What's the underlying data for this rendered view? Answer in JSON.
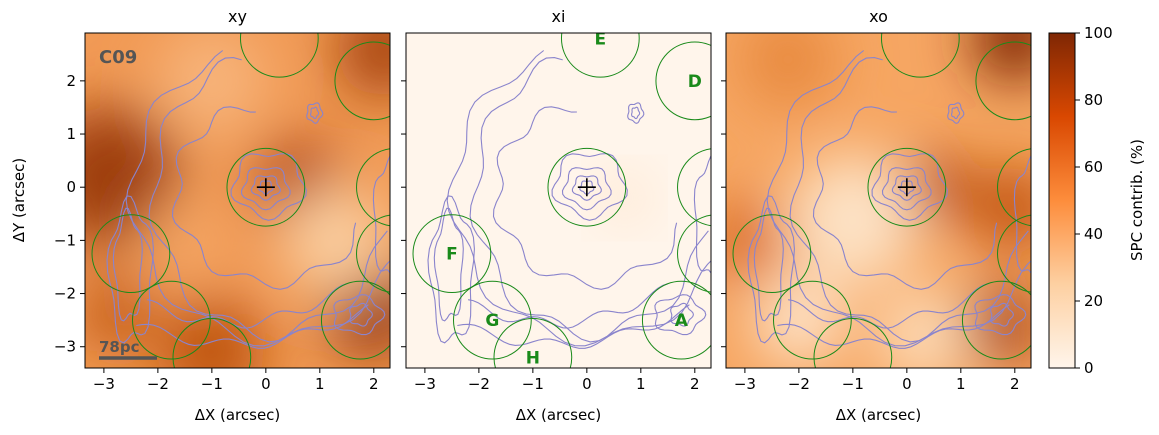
{
  "chart_data": {
    "type": "image-grid",
    "panels": [
      {
        "title": "xy",
        "ylabel": "ΔY (arcsec)",
        "annotations": [
          "C09",
          "78pc"
        ]
      },
      {
        "title": "xi"
      },
      {
        "title": "xo"
      }
    ],
    "xlabel": "ΔX (arcsec)",
    "xlim": [
      -3.35,
      2.3
    ],
    "ylim": [
      -3.4,
      2.9
    ],
    "xticks": [
      {
        "value": -3,
        "label": "−3"
      },
      {
        "value": -2,
        "label": "−2"
      },
      {
        "value": -1,
        "label": "−1"
      },
      0,
      1,
      2
    ],
    "yticks": [
      {
        "value": -3,
        "label": "−3"
      },
      {
        "value": -2,
        "label": "−2"
      },
      {
        "value": -1,
        "label": "−1"
      },
      0,
      1,
      2
    ],
    "apertures": [
      {
        "label": "A",
        "x": 1.75,
        "y": -2.5
      },
      {
        "label": "D",
        "x": 2.0,
        "y": 2.0
      },
      {
        "label": "E",
        "x": 0.25,
        "y": 2.8
      },
      {
        "label": "F",
        "x": -2.5,
        "y": -1.25
      },
      {
        "label": "G",
        "x": -1.75,
        "y": -2.5
      },
      {
        "label": "H",
        "x": -1.0,
        "y": -3.2
      },
      {
        "x": 0,
        "y": 0
      },
      {
        "x": 2.4,
        "y": 0
      },
      {
        "x": 2.4,
        "y": -1.25
      }
    ],
    "colorbar": {
      "label": "SPC contrib. (%)",
      "lim": [
        0,
        100
      ],
      "ticks": [
        0,
        20,
        40,
        60,
        80,
        100
      ],
      "colors": [
        "#fff5eb",
        "#fdd0a2",
        "#fd8d3c",
        "#d94801",
        "#7f2704"
      ]
    }
  }
}
